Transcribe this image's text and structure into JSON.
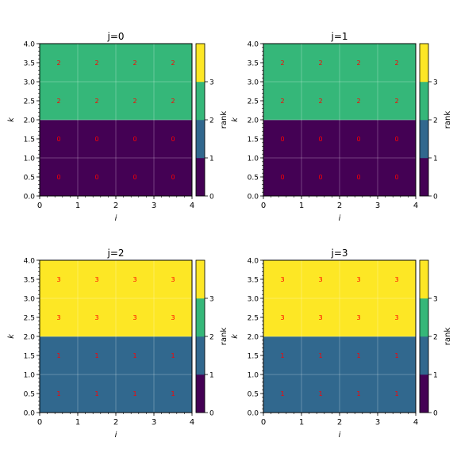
{
  "chart_data": [
    {
      "type": "heatmap",
      "title": "j=0",
      "xlabel": "i",
      "ylabel": "k",
      "xlim": [
        0,
        4
      ],
      "ylim": [
        0,
        4
      ],
      "x_ticks": [
        "0",
        "1",
        "2",
        "3",
        "4"
      ],
      "y_ticks": [
        "0.0",
        "0.5",
        "1.0",
        "1.5",
        "2.0",
        "2.5",
        "3.0",
        "3.5",
        "4.0"
      ],
      "x_centers": [
        0.5,
        1.5,
        2.5,
        3.5
      ],
      "y_centers": [
        0.5,
        1.5,
        2.5,
        3.5
      ],
      "values": [
        [
          0,
          0,
          0,
          0
        ],
        [
          0,
          0,
          0,
          0
        ],
        [
          2,
          2,
          2,
          2
        ],
        [
          2,
          2,
          2,
          2
        ]
      ],
      "colorbar": {
        "label": "rank",
        "ticks": [
          "0",
          "1",
          "2",
          "3"
        ],
        "range": [
          0,
          4
        ]
      },
      "grid": true
    },
    {
      "type": "heatmap",
      "title": "j=1",
      "xlabel": "i",
      "ylabel": "k",
      "xlim": [
        0,
        4
      ],
      "ylim": [
        0,
        4
      ],
      "x_ticks": [
        "0",
        "1",
        "2",
        "3",
        "4"
      ],
      "y_ticks": [
        "0.0",
        "0.5",
        "1.0",
        "1.5",
        "2.0",
        "2.5",
        "3.0",
        "3.5",
        "4.0"
      ],
      "x_centers": [
        0.5,
        1.5,
        2.5,
        3.5
      ],
      "y_centers": [
        0.5,
        1.5,
        2.5,
        3.5
      ],
      "values": [
        [
          0,
          0,
          0,
          0
        ],
        [
          0,
          0,
          0,
          0
        ],
        [
          2,
          2,
          2,
          2
        ],
        [
          2,
          2,
          2,
          2
        ]
      ],
      "colorbar": {
        "label": "rank",
        "ticks": [
          "0",
          "1",
          "2",
          "3"
        ],
        "range": [
          0,
          4
        ]
      },
      "grid": true
    },
    {
      "type": "heatmap",
      "title": "j=2",
      "xlabel": "i",
      "ylabel": "k",
      "xlim": [
        0,
        4
      ],
      "ylim": [
        0,
        4
      ],
      "x_ticks": [
        "0",
        "1",
        "2",
        "3",
        "4"
      ],
      "y_ticks": [
        "0.0",
        "0.5",
        "1.0",
        "1.5",
        "2.0",
        "2.5",
        "3.0",
        "3.5",
        "4.0"
      ],
      "x_centers": [
        0.5,
        1.5,
        2.5,
        3.5
      ],
      "y_centers": [
        0.5,
        1.5,
        2.5,
        3.5
      ],
      "values": [
        [
          1,
          1,
          1,
          1
        ],
        [
          1,
          1,
          1,
          1
        ],
        [
          3,
          3,
          3,
          3
        ],
        [
          3,
          3,
          3,
          3
        ]
      ],
      "colorbar": {
        "label": "rank",
        "ticks": [
          "0",
          "1",
          "2",
          "3"
        ],
        "range": [
          0,
          4
        ]
      },
      "grid": true
    },
    {
      "type": "heatmap",
      "title": "j=3",
      "xlabel": "i",
      "ylabel": "k",
      "xlim": [
        0,
        4
      ],
      "ylim": [
        0,
        4
      ],
      "x_ticks": [
        "0",
        "1",
        "2",
        "3",
        "4"
      ],
      "y_ticks": [
        "0.0",
        "0.5",
        "1.0",
        "1.5",
        "2.0",
        "2.5",
        "3.0",
        "3.5",
        "4.0"
      ],
      "x_centers": [
        0.5,
        1.5,
        2.5,
        3.5
      ],
      "y_centers": [
        0.5,
        1.5,
        2.5,
        3.5
      ],
      "values": [
        [
          1,
          1,
          1,
          1
        ],
        [
          1,
          1,
          1,
          1
        ],
        [
          3,
          3,
          3,
          3
        ],
        [
          3,
          3,
          3,
          3
        ]
      ],
      "colorbar": {
        "label": "rank",
        "ticks": [
          "0",
          "1",
          "2",
          "3"
        ],
        "range": [
          0,
          4
        ]
      },
      "grid": true
    }
  ],
  "colors": {
    "rank_0": "#440154",
    "rank_1": "#31688e",
    "rank_2": "#35b779",
    "rank_3": "#fde725",
    "cell_label": "#ff0000",
    "axis": "#000000",
    "grid": "#ffffff"
  }
}
